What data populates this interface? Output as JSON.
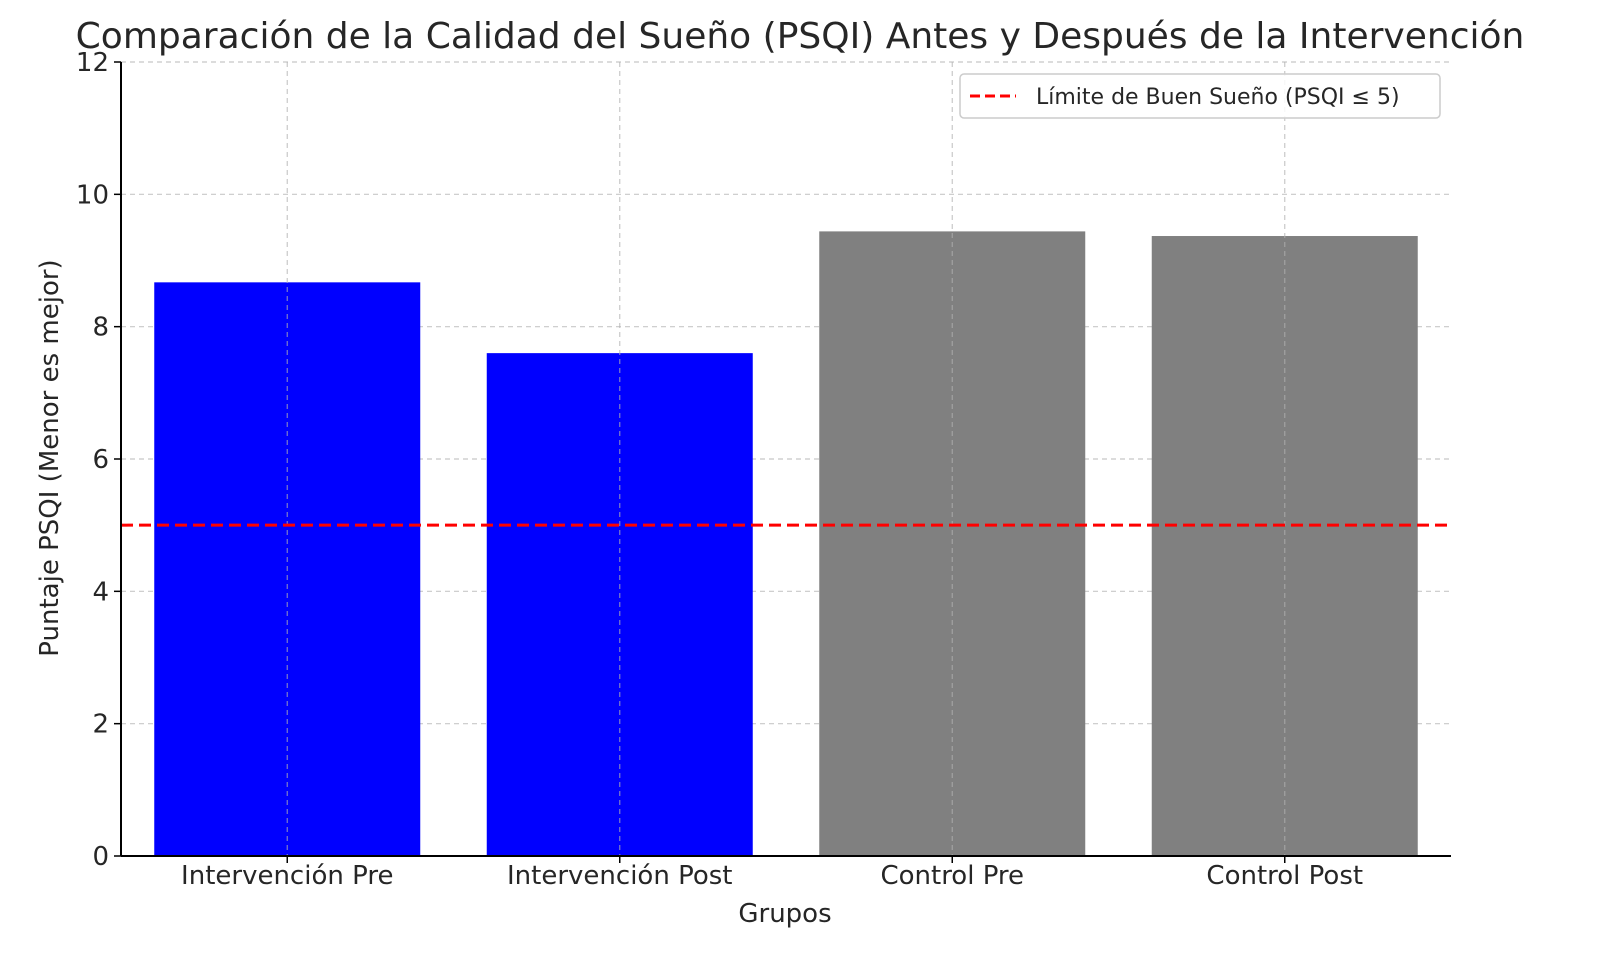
{
  "chart_data": {
    "type": "bar",
    "title": "Comparación de la Calidad del Sueño (PSQI) Antes y Después de la Intervención",
    "xlabel": "Grupos",
    "ylabel": "Puntaje PSQI (Menor es mejor)",
    "categories": [
      "Intervención Pre",
      "Intervención Post",
      "Control Pre",
      "Control Post"
    ],
    "values": [
      8.67,
      7.6,
      9.44,
      9.37
    ],
    "bar_colors": [
      "#0000ff",
      "#0000ff",
      "#808080",
      "#808080"
    ],
    "ylim": [
      0,
      12
    ],
    "yticks": [
      0,
      2,
      4,
      6,
      8,
      10,
      12
    ],
    "reference_line": {
      "value": 5,
      "label": "Límite de Buen Sueño (PSQI ≤ 5)",
      "color": "#ff0000",
      "style": "dashed"
    },
    "grid": true,
    "legend_position": "top-right"
  }
}
